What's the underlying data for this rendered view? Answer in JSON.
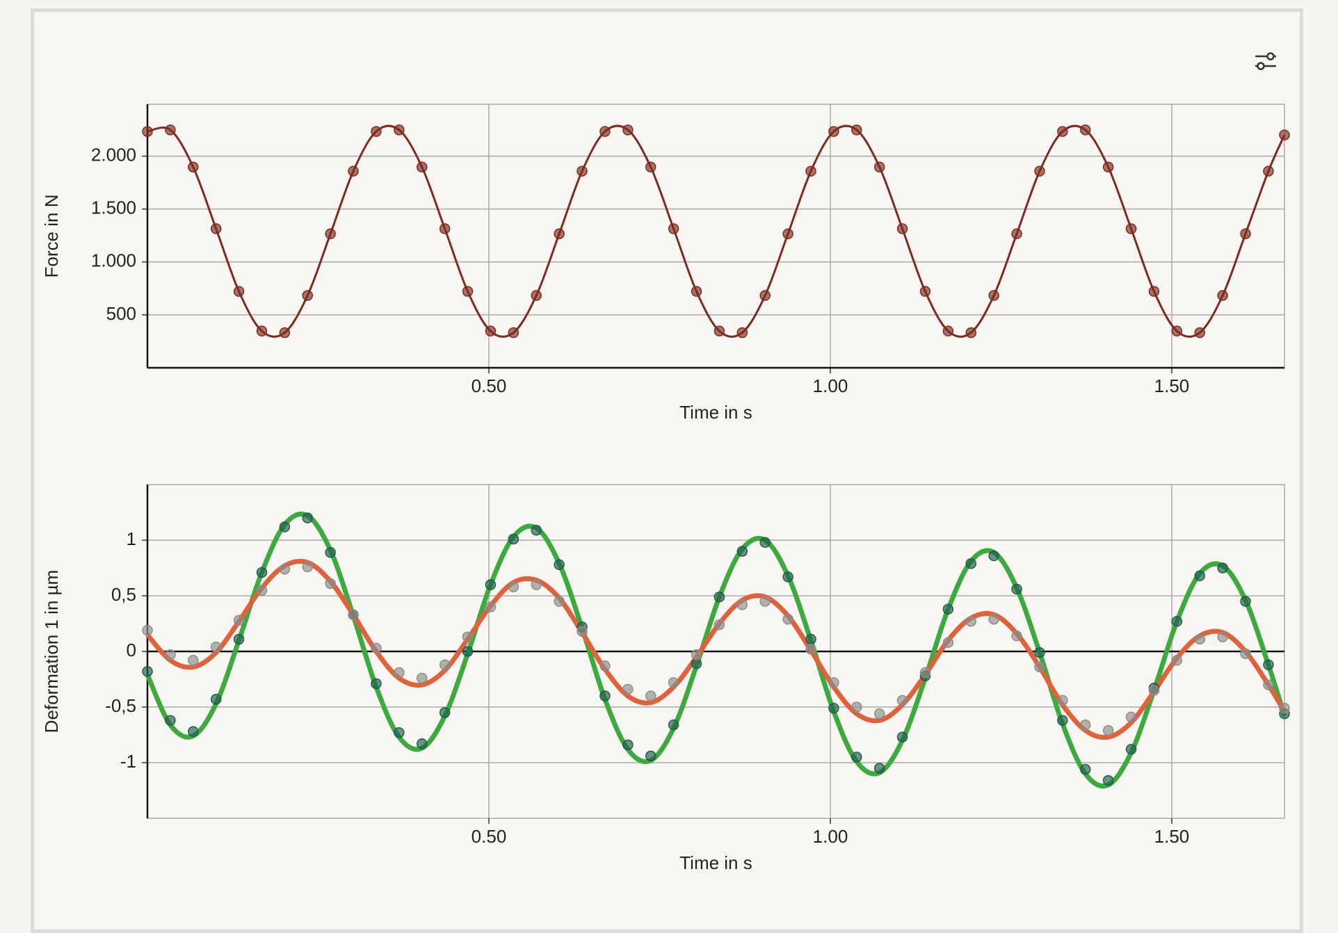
{
  "chart_data": [
    {
      "type": "line",
      "ylabel": "Force in N",
      "xlabel": "Time in s",
      "x": [
        0,
        0.0335,
        0.067,
        0.1005,
        0.134,
        0.1675,
        0.201,
        0.2345,
        0.268,
        0.3015,
        0.335,
        0.3685,
        0.402,
        0.4355,
        0.469,
        0.5025,
        0.536,
        0.5695,
        0.603,
        0.6365,
        0.67,
        0.7035,
        0.737,
        0.7705,
        0.804,
        0.8375,
        0.871,
        0.9045,
        0.938,
        0.9715,
        1.005,
        1.0385,
        1.072,
        1.1055,
        1.139,
        1.1725,
        1.206,
        1.2395,
        1.273,
        1.3065,
        1.34,
        1.3735,
        1.407,
        1.4405,
        1.474,
        1.5075,
        1.541,
        1.5745,
        1.608,
        1.6415,
        1.665
      ],
      "xlim": [
        0,
        1.665
      ],
      "ylim": [
        0,
        2490
      ],
      "xticks": [
        {
          "value": 0.5,
          "label": "0.50"
        },
        {
          "value": 1.0,
          "label": "1.00"
        },
        {
          "value": 1.5,
          "label": "1.50"
        }
      ],
      "yticks": [
        500,
        {
          "value": 1000,
          "label": "1.000"
        },
        {
          "value": 1500,
          "label": "1.500"
        },
        {
          "value": 2000,
          "label": "2.000"
        }
      ],
      "grid": true,
      "series": [
        {
          "color": "#7e2b1e",
          "style": "line+markers",
          "values": [
            2233,
            2248,
            1897,
            1314,
            722,
            347,
            332,
            683,
            1266,
            1858,
            2233,
            2248,
            1897,
            1314,
            722,
            347,
            332,
            683,
            1266,
            1858,
            2233,
            2248,
            1897,
            1314,
            722,
            347,
            332,
            683,
            1266,
            1858,
            2233,
            2248,
            1897,
            1314,
            722,
            347,
            332,
            683,
            1266,
            1858,
            2233,
            2248,
            1897,
            1314,
            722,
            347,
            332,
            683,
            1266,
            1858,
            2200
          ]
        }
      ]
    },
    {
      "type": "line",
      "ylabel": "Deformation 1 in µm",
      "xlabel": "Time in s",
      "x": [
        0,
        0.0335,
        0.067,
        0.1005,
        0.134,
        0.1675,
        0.201,
        0.2345,
        0.268,
        0.3015,
        0.335,
        0.3685,
        0.402,
        0.4355,
        0.469,
        0.5025,
        0.536,
        0.5695,
        0.603,
        0.6365,
        0.67,
        0.7035,
        0.737,
        0.7705,
        0.804,
        0.8375,
        0.871,
        0.9045,
        0.938,
        0.9715,
        1.005,
        1.0385,
        1.072,
        1.1055,
        1.139,
        1.1725,
        1.206,
        1.2395,
        1.273,
        1.3065,
        1.34,
        1.3735,
        1.407,
        1.4405,
        1.474,
        1.5075,
        1.541,
        1.5745,
        1.608,
        1.6415,
        1.665
      ],
      "xlim": [
        0,
        1.665
      ],
      "ylim": [
        -1.5,
        1.5
      ],
      "xticks": [
        {
          "value": 0.5,
          "label": "0.50"
        },
        {
          "value": 1.0,
          "label": "1.00"
        },
        {
          "value": 1.5,
          "label": "1.50"
        }
      ],
      "yticks": [
        -1,
        {
          "value": -0.5,
          "label": "-0,5"
        },
        0,
        {
          "value": 0.5,
          "label": "0,5"
        },
        1
      ],
      "grid": true,
      "series": [
        {
          "color": "#3daa3f",
          "style": "line",
          "values": [
            -0.21,
            -0.66,
            -0.76,
            -0.47,
            0.1,
            0.71,
            1.14,
            1.22,
            0.91,
            0.32,
            -0.32,
            -0.77,
            -0.87,
            -0.58,
            -0.02,
            0.6,
            1.03,
            1.11,
            0.79,
            0.21,
            -0.43,
            -0.88,
            -0.98,
            -0.69,
            -0.13,
            0.49,
            0.92,
            1.0,
            0.68,
            0.1,
            -0.54,
            -0.99,
            -1.09,
            -0.8,
            -0.24,
            0.38,
            0.81,
            0.89,
            0.57,
            -0.01,
            -0.65,
            -1.1,
            -1.2,
            -0.91,
            -0.35,
            0.27,
            0.7,
            0.77,
            0.46,
            -0.12,
            -0.58
          ]
        },
        {
          "color": "#e0623a",
          "style": "line",
          "values": [
            0.15,
            -0.08,
            -0.14,
            -0.01,
            0.27,
            0.57,
            0.77,
            0.8,
            0.63,
            0.33,
            0.0,
            -0.24,
            -0.3,
            -0.17,
            0.11,
            0.41,
            0.62,
            0.64,
            0.48,
            0.17,
            -0.16,
            -0.4,
            -0.46,
            -0.32,
            -0.05,
            0.25,
            0.46,
            0.49,
            0.32,
            0.01,
            -0.32,
            -0.56,
            -0.62,
            -0.48,
            -0.21,
            0.1,
            0.3,
            0.33,
            0.16,
            -0.14,
            -0.48,
            -0.71,
            -0.77,
            -0.64,
            -0.36,
            -0.06,
            0.14,
            0.17,
            0.0,
            -0.3,
            -0.54
          ]
        },
        {
          "color": "#1f5e4b",
          "style": "markers",
          "values": [
            -0.18,
            -0.62,
            -0.72,
            -0.43,
            0.11,
            0.71,
            1.12,
            1.2,
            0.89,
            0.33,
            -0.29,
            -0.73,
            -0.83,
            -0.55,
            0.0,
            0.6,
            1.01,
            1.09,
            0.78,
            0.22,
            -0.4,
            -0.84,
            -0.94,
            -0.66,
            -0.11,
            0.49,
            0.9,
            0.98,
            0.67,
            0.11,
            -0.51,
            -0.95,
            -1.05,
            -0.77,
            -0.22,
            0.38,
            0.79,
            0.86,
            0.56,
            -0.01,
            -0.62,
            -1.06,
            -1.16,
            -0.88,
            -0.33,
            0.27,
            0.68,
            0.75,
            0.45,
            -0.12,
            -0.56
          ]
        },
        {
          "color": "#8c8c88",
          "style": "markers",
          "values": [
            0.19,
            -0.03,
            -0.08,
            0.04,
            0.28,
            0.55,
            0.74,
            0.76,
            0.61,
            0.33,
            0.03,
            -0.19,
            -0.24,
            -0.12,
            0.13,
            0.4,
            0.58,
            0.6,
            0.45,
            0.18,
            -0.13,
            -0.34,
            -0.4,
            -0.28,
            -0.03,
            0.24,
            0.42,
            0.45,
            0.29,
            0.02,
            -0.28,
            -0.5,
            -0.56,
            -0.44,
            -0.19,
            0.08,
            0.27,
            0.29,
            0.14,
            -0.14,
            -0.44,
            -0.66,
            -0.71,
            -0.59,
            -0.35,
            -0.08,
            0.11,
            0.13,
            -0.02,
            -0.3,
            -0.51
          ]
        }
      ]
    }
  ]
}
